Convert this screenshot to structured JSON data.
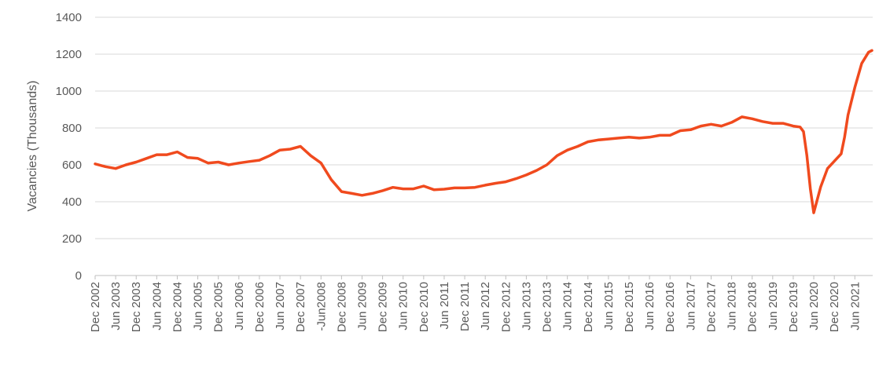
{
  "chart_data": {
    "type": "line",
    "ylabel": "Vacancies (Thousands)",
    "xlabel": "",
    "title": "",
    "ylim": [
      0,
      1400
    ],
    "yticks": [
      0,
      200,
      400,
      600,
      800,
      1000,
      1200,
      1400
    ],
    "grid": true,
    "line_color": "#f04a1e",
    "x_tick_labels": [
      "Dec 2002",
      "Jun 2003",
      "Dec 2003",
      "Jun 2004",
      "Dec 2004",
      "Jun 2005",
      "Dec 2005",
      "Jun 2006",
      "Dec 2006",
      "Jun 2007",
      "Dec 2007",
      "-Jun2008",
      "Dec 2008",
      "Jun 2009",
      "Dec 2009",
      "Jun 2010",
      "Dec 2010",
      "Jun 2011",
      "Dec 2011",
      "Jun 2012",
      "Dec 2012",
      "Jun 2013",
      "Dec 2013",
      "Jun 2014",
      "Dec 2014",
      "Jun 2015",
      "Dec 2015",
      "Jun 2016",
      "Dec 2016",
      "Jun 2017",
      "Dec 2017",
      "Jun 2018",
      "Dec 2018",
      "Jun 2019",
      "Dec 2019",
      "Jun 2020",
      "Dec 2020",
      "Jun 2021"
    ],
    "series": [
      {
        "x": [
          "Dec 2002",
          "Mar 2003",
          "Jun 2003",
          "Sep 2003",
          "Dec 2003",
          "Mar 2004",
          "Jun 2004",
          "Sep 2004",
          "Dec 2004",
          "Mar 2005",
          "Jun 2005",
          "Sep 2005",
          "Dec 2005",
          "Mar 2006",
          "Jun 2006",
          "Sep 2006",
          "Dec 2006",
          "Mar 2007",
          "Jun 2007",
          "Sep 2007",
          "Dec 2007",
          "Mar 2008",
          "Jun 2008",
          "Sep 2008",
          "Dec 2008",
          "Mar 2009",
          "Jun 2009",
          "Sep 2009",
          "Dec 2009",
          "Mar 2010",
          "Jun 2010",
          "Sep 2010",
          "Dec 2010",
          "Mar 2011",
          "Jun 2011",
          "Sep 2011",
          "Dec 2011",
          "Mar 2012",
          "Jun 2012",
          "Sep 2012",
          "Dec 2012",
          "Mar 2013",
          "Jun 2013",
          "Sep 2013",
          "Dec 2013",
          "Mar 2014",
          "Jun 2014",
          "Sep 2014",
          "Dec 2014",
          "Mar 2015",
          "Jun 2015",
          "Sep 2015",
          "Dec 2015",
          "Mar 2016",
          "Jun 2016",
          "Sep 2016",
          "Dec 2016",
          "Mar 2017",
          "Jun 2017",
          "Sep 2017",
          "Dec 2017",
          "Mar 2018",
          "Jun 2018",
          "Sep 2018",
          "Dec 2018",
          "Mar 2019",
          "Jun 2019",
          "Sep 2019",
          "Dec 2019",
          "Feb 2020",
          "Mar 2020",
          "Apr 2020",
          "May 2020",
          "Jun 2020",
          "Aug 2020",
          "Oct 2020",
          "Dec 2020",
          "Feb 2021",
          "Mar 2021",
          "Apr 2021",
          "Jun 2021",
          "Aug 2021",
          "Oct 2021",
          "Nov 2021"
        ],
        "values": [
          605,
          590,
          580,
          600,
          615,
          635,
          655,
          655,
          670,
          640,
          635,
          610,
          615,
          600,
          610,
          618,
          625,
          650,
          680,
          685,
          700,
          650,
          610,
          520,
          455,
          445,
          435,
          445,
          460,
          478,
          470,
          470,
          485,
          465,
          468,
          475,
          475,
          478,
          490,
          500,
          508,
          525,
          545,
          570,
          600,
          650,
          680,
          700,
          725,
          735,
          740,
          745,
          750,
          745,
          750,
          760,
          760,
          785,
          790,
          810,
          820,
          810,
          830,
          860,
          850,
          835,
          825,
          825,
          810,
          805,
          780,
          650,
          470,
          340,
          480,
          580,
          620,
          660,
          750,
          870,
          1020,
          1150,
          1210,
          1220
        ]
      }
    ]
  }
}
